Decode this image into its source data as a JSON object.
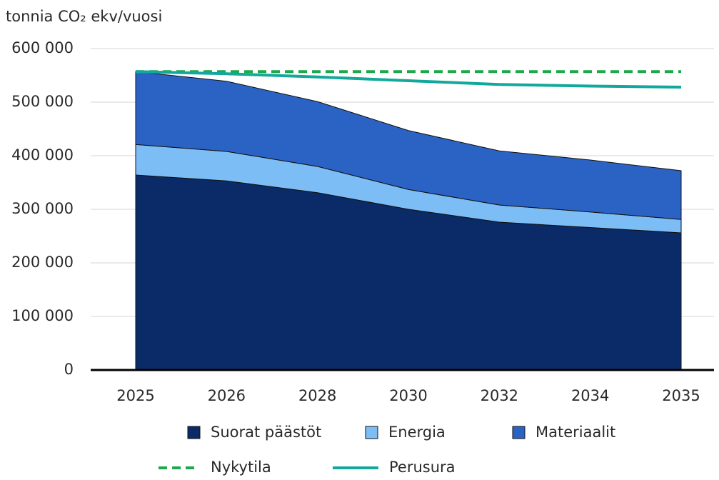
{
  "chart_data": {
    "type": "area",
    "y_label": "tonnia CO₂ ekv/vuosi",
    "categories": [
      "2025",
      "2026",
      "2028",
      "2030",
      "2032",
      "2034",
      "2035"
    ],
    "series": [
      {
        "name": "Suorat päästöt",
        "color": "#0b2b68",
        "values": [
          364000,
          353000,
          331000,
          300000,
          276000,
          266000,
          256000
        ]
      },
      {
        "name": "Energia",
        "color": "#7cbdf5",
        "values": [
          57000,
          55000,
          49000,
          37000,
          32000,
          29000,
          25000
        ]
      },
      {
        "name": "Materiaalit",
        "color": "#2b63c5",
        "values": [
          136000,
          131000,
          121000,
          110000,
          101000,
          97000,
          91000
        ]
      },
      {
        "name": "Nykytila",
        "color": "#1ea84c",
        "type": "line",
        "dash": "dashed",
        "values": [
          557000,
          557000,
          557000,
          557000,
          557000,
          557000,
          557000
        ]
      },
      {
        "name": "Perusura",
        "color": "#12a89b",
        "type": "line",
        "values": [
          557000,
          553000,
          547000,
          540000,
          533000,
          530000,
          528000
        ]
      }
    ],
    "ylim": [
      0,
      600000
    ],
    "yticks": [
      {
        "value": 0,
        "label": "0"
      },
      {
        "value": 100000,
        "label": "100 000"
      },
      {
        "value": 200000,
        "label": "200 000"
      },
      {
        "value": 300000,
        "label": "300 000"
      },
      {
        "value": 400000,
        "label": "400 000"
      },
      {
        "value": 500000,
        "label": "500 000"
      },
      {
        "value": 600000,
        "label": "600 000"
      }
    ],
    "grid": true
  }
}
